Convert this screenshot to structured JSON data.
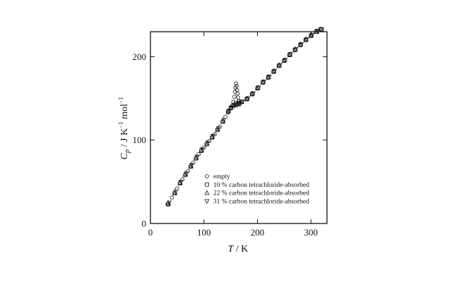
{
  "chart_data": {
    "type": "scatter",
    "title": "",
    "xlabel": {
      "symbol": "T",
      "unit": "K"
    },
    "ylabel": {
      "symbol": "C",
      "subscript": "p",
      "unit": "J K",
      "unit_exp1": "−1",
      "unit_mid": "mol",
      "unit_exp2": "−1"
    },
    "xlim": [
      0,
      330
    ],
    "ylim": [
      0,
      230
    ],
    "xticks": [
      0,
      100,
      200,
      300
    ],
    "yticks": [
      0,
      100,
      200
    ],
    "grid": false,
    "legend_position": "lower-right",
    "series": [
      {
        "name": "empty",
        "marker": "circle",
        "points": [
          [
            32,
            23
          ],
          [
            40,
            31
          ],
          [
            50,
            42
          ],
          [
            60,
            53
          ],
          [
            70,
            63
          ],
          [
            80,
            73
          ],
          [
            90,
            83
          ],
          [
            100,
            91
          ],
          [
            110,
            99
          ],
          [
            120,
            107
          ],
          [
            130,
            116
          ],
          [
            140,
            128
          ],
          [
            145,
            133
          ],
          [
            150,
            138
          ],
          [
            153,
            141
          ],
          [
            155,
            146
          ],
          [
            157,
            152
          ],
          [
            158,
            158
          ],
          [
            159,
            163
          ],
          [
            160,
            168
          ],
          [
            161,
            165
          ],
          [
            162,
            160
          ],
          [
            163,
            156
          ],
          [
            164,
            151
          ],
          [
            165,
            147
          ],
          [
            166,
            145
          ],
          [
            170,
            146
          ],
          [
            180,
            149
          ],
          [
            190,
            155
          ],
          [
            200,
            162
          ],
          [
            210,
            169
          ],
          [
            220,
            175
          ],
          [
            230,
            182
          ],
          [
            240,
            189
          ],
          [
            250,
            195
          ],
          [
            260,
            202
          ],
          [
            270,
            208
          ],
          [
            280,
            214
          ],
          [
            290,
            220
          ],
          [
            300,
            225
          ],
          [
            310,
            230
          ],
          [
            320,
            233
          ]
        ]
      },
      {
        "name": "10 % carbon tetrachloride-absorbed",
        "marker": "square",
        "points": [
          [
            33,
            23
          ],
          [
            45,
            36
          ],
          [
            55,
            48
          ],
          [
            65,
            58
          ],
          [
            75,
            68
          ],
          [
            85,
            78
          ],
          [
            95,
            87
          ],
          [
            105,
            95
          ],
          [
            115,
            103
          ],
          [
            125,
            112
          ],
          [
            135,
            122
          ],
          [
            145,
            134
          ],
          [
            150,
            139
          ],
          [
            155,
            142
          ],
          [
            160,
            144
          ],
          [
            165,
            145
          ],
          [
            170,
            146
          ],
          [
            180,
            149
          ],
          [
            190,
            155
          ],
          [
            200,
            162
          ],
          [
            210,
            169
          ],
          [
            220,
            175
          ],
          [
            230,
            182
          ],
          [
            240,
            189
          ],
          [
            250,
            195
          ],
          [
            260,
            202
          ],
          [
            270,
            208
          ],
          [
            280,
            214
          ],
          [
            290,
            220
          ],
          [
            300,
            225
          ],
          [
            310,
            230
          ],
          [
            320,
            233
          ]
        ]
      },
      {
        "name": "22 % carbon tetrachloride-absorbed",
        "marker": "triangle-up",
        "points": [
          [
            34,
            24
          ],
          [
            46,
            37
          ],
          [
            56,
            49
          ],
          [
            66,
            59
          ],
          [
            76,
            69
          ],
          [
            86,
            79
          ],
          [
            96,
            88
          ],
          [
            106,
            96
          ],
          [
            116,
            104
          ],
          [
            126,
            113
          ],
          [
            136,
            123
          ],
          [
            146,
            135
          ],
          [
            151,
            139
          ],
          [
            156,
            142
          ],
          [
            161,
            143
          ],
          [
            166,
            144
          ],
          [
            171,
            146
          ],
          [
            181,
            150
          ],
          [
            191,
            156
          ],
          [
            201,
            163
          ],
          [
            211,
            170
          ],
          [
            221,
            176
          ],
          [
            231,
            183
          ],
          [
            241,
            190
          ],
          [
            251,
            196
          ],
          [
            261,
            203
          ],
          [
            271,
            209
          ],
          [
            281,
            215
          ],
          [
            291,
            221
          ],
          [
            301,
            226
          ],
          [
            311,
            230
          ],
          [
            319,
            233
          ]
        ]
      },
      {
        "name": "31 % carbon tetrachloride-absorbed",
        "marker": "triangle-down",
        "points": [
          [
            35,
            25
          ],
          [
            47,
            38
          ],
          [
            57,
            50
          ],
          [
            67,
            60
          ],
          [
            77,
            70
          ],
          [
            87,
            80
          ],
          [
            97,
            89
          ],
          [
            107,
            97
          ],
          [
            117,
            105
          ],
          [
            127,
            114
          ],
          [
            137,
            124
          ],
          [
            147,
            135
          ],
          [
            152,
            139
          ],
          [
            157,
            141
          ],
          [
            162,
            142
          ],
          [
            167,
            143
          ],
          [
            172,
            146
          ],
          [
            182,
            150
          ],
          [
            192,
            156
          ],
          [
            202,
            163
          ],
          [
            212,
            170
          ],
          [
            222,
            176
          ],
          [
            232,
            183
          ],
          [
            242,
            190
          ],
          [
            252,
            196
          ],
          [
            262,
            203
          ],
          [
            272,
            209
          ],
          [
            282,
            215
          ],
          [
            292,
            221
          ],
          [
            302,
            226
          ],
          [
            312,
            231
          ],
          [
            318,
            233
          ]
        ]
      }
    ]
  }
}
